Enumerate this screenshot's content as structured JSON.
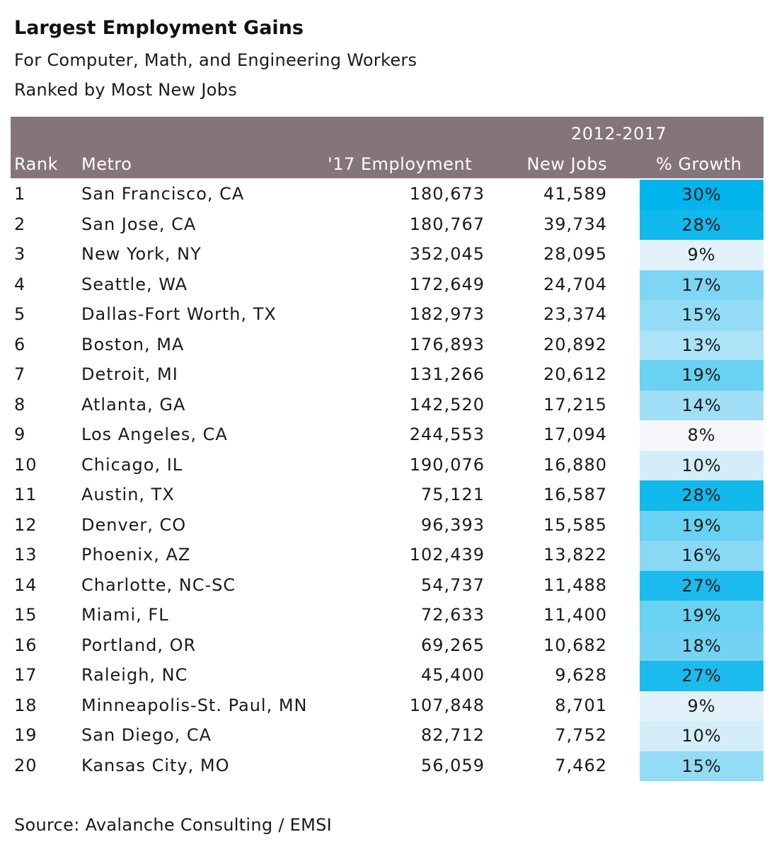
{
  "title": "Largest Employment Gains",
  "subtitle1": "For Computer, Math, and Engineering Workers",
  "subtitle2": "Ranked by Most New Jobs",
  "source": "Source:  Avalanche Consulting / EMSI",
  "colors": {
    "header_bg": "#857479",
    "growth_high": "#00b4ec",
    "growth_low": "#f7f7fb"
  },
  "chart_data": {
    "type": "table",
    "header": {
      "period": "2012-2017",
      "columns": [
        "Rank",
        "Metro",
        "'17 Employment",
        "New Jobs",
        "% Growth"
      ]
    },
    "rows": [
      {
        "rank": "1",
        "metro": "San Francisco, CA",
        "employment": "180,673",
        "new_jobs": "41,589",
        "growth": "30%",
        "growth_value": 30
      },
      {
        "rank": "2",
        "metro": "San Jose, CA",
        "employment": "180,767",
        "new_jobs": "39,734",
        "growth": "28%",
        "growth_value": 28
      },
      {
        "rank": "3",
        "metro": "New York, NY",
        "employment": "352,045",
        "new_jobs": "28,095",
        "growth": "9%",
        "growth_value": 9
      },
      {
        "rank": "4",
        "metro": "Seattle, WA",
        "employment": "172,649",
        "new_jobs": "24,704",
        "growth": "17%",
        "growth_value": 17
      },
      {
        "rank": "5",
        "metro": "Dallas-Fort Worth, TX",
        "employment": "182,973",
        "new_jobs": "23,374",
        "growth": "15%",
        "growth_value": 15
      },
      {
        "rank": "6",
        "metro": "Boston, MA",
        "employment": "176,893",
        "new_jobs": "20,892",
        "growth": "13%",
        "growth_value": 13
      },
      {
        "rank": "7",
        "metro": "Detroit, MI",
        "employment": "131,266",
        "new_jobs": "20,612",
        "growth": "19%",
        "growth_value": 19
      },
      {
        "rank": "8",
        "metro": "Atlanta, GA",
        "employment": "142,520",
        "new_jobs": "17,215",
        "growth": "14%",
        "growth_value": 14
      },
      {
        "rank": "9",
        "metro": "Los Angeles, CA",
        "employment": "244,553",
        "new_jobs": "17,094",
        "growth": "8%",
        "growth_value": 8
      },
      {
        "rank": "10",
        "metro": "Chicago, IL",
        "employment": "190,076",
        "new_jobs": "16,880",
        "growth": "10%",
        "growth_value": 10
      },
      {
        "rank": "11",
        "metro": "Austin, TX",
        "employment": "75,121",
        "new_jobs": "16,587",
        "growth": "28%",
        "growth_value": 28
      },
      {
        "rank": "12",
        "metro": "Denver, CO",
        "employment": "96,393",
        "new_jobs": "15,585",
        "growth": "19%",
        "growth_value": 19
      },
      {
        "rank": "13",
        "metro": "Phoenix, AZ",
        "employment": "102,439",
        "new_jobs": "13,822",
        "growth": "16%",
        "growth_value": 16
      },
      {
        "rank": "14",
        "metro": "Charlotte, NC-SC",
        "employment": "54,737",
        "new_jobs": "11,488",
        "growth": "27%",
        "growth_value": 27
      },
      {
        "rank": "15",
        "metro": "Miami, FL",
        "employment": "72,633",
        "new_jobs": "11,400",
        "growth": "19%",
        "growth_value": 19
      },
      {
        "rank": "16",
        "metro": "Portland, OR",
        "employment": "69,265",
        "new_jobs": "10,682",
        "growth": "18%",
        "growth_value": 18
      },
      {
        "rank": "17",
        "metro": "Raleigh, NC",
        "employment": "45,400",
        "new_jobs": "9,628",
        "growth": "27%",
        "growth_value": 27
      },
      {
        "rank": "18",
        "metro": "Minneapolis-St. Paul, MN",
        "employment": "107,848",
        "new_jobs": "8,701",
        "growth": "9%",
        "growth_value": 9
      },
      {
        "rank": "19",
        "metro": "San Diego, CA",
        "employment": "82,712",
        "new_jobs": "7,752",
        "growth": "10%",
        "growth_value": 10
      },
      {
        "rank": "20",
        "metro": "Kansas City, MO",
        "employment": "56,059",
        "new_jobs": "7,462",
        "growth": "15%",
        "growth_value": 15
      }
    ]
  }
}
